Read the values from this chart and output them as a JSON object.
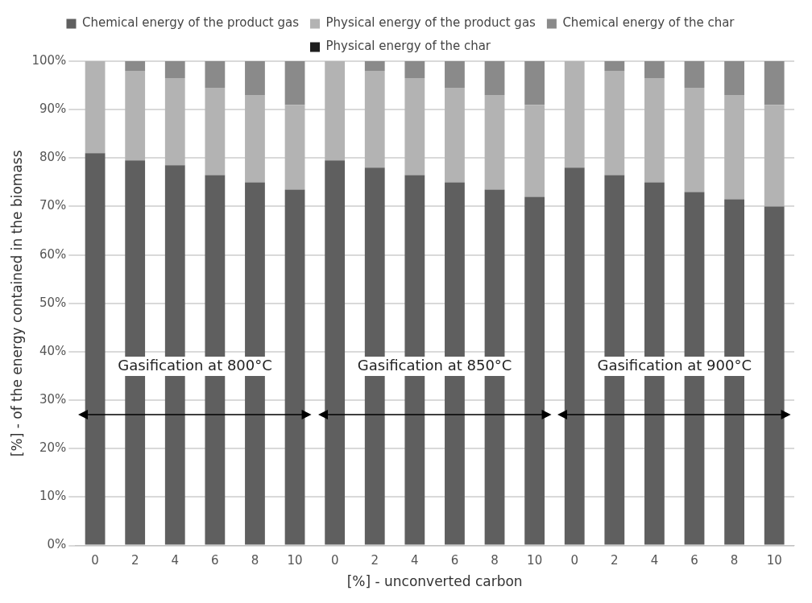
{
  "chart_data": {
    "type": "bar",
    "stacked": true,
    "xlabel": "[%] - unconverted carbon",
    "ylabel": "[%] - of the energy contained in the biomass",
    "categories": [
      "0",
      "2",
      "4",
      "6",
      "8",
      "10",
      "0",
      "2",
      "4",
      "6",
      "8",
      "10",
      "0",
      "2",
      "4",
      "6",
      "8",
      "10"
    ],
    "series": [
      {
        "name": "Chemical energy of the product gas",
        "color": "#5f5f5f",
        "values": [
          81,
          79.5,
          78.5,
          76.5,
          75,
          73.5,
          79.5,
          78,
          76.5,
          75,
          73.5,
          72,
          78,
          76.5,
          75,
          73,
          71.5,
          70
        ]
      },
      {
        "name": "Physical energy of the product gas",
        "color": "#b3b3b3",
        "values": [
          19,
          18.5,
          18,
          18,
          18,
          17.5,
          20.5,
          20,
          20,
          19.5,
          19.5,
          19,
          22,
          21.5,
          21.5,
          21.5,
          21.5,
          21
        ]
      },
      {
        "name": "Chemical energy of the char",
        "color": "#8a8a8a",
        "values": [
          0,
          2,
          3.5,
          5.5,
          7,
          9,
          0,
          2,
          3.5,
          5.5,
          7,
          9,
          0,
          2,
          3.5,
          5.5,
          7,
          9
        ]
      },
      {
        "name": "Physical energy of the char",
        "color": "#1e1e1e",
        "values": [
          0,
          0,
          0,
          0,
          0,
          0,
          0,
          0,
          0,
          0,
          0,
          0,
          0,
          0,
          0,
          0,
          0,
          0
        ]
      }
    ],
    "ylim": [
      0,
      100
    ],
    "yticks": [
      {
        "value": 0,
        "label": "0%"
      },
      {
        "value": 10,
        "label": "10%"
      },
      {
        "value": 20,
        "label": "20%"
      },
      {
        "value": 30,
        "label": "30%"
      },
      {
        "value": 40,
        "label": "40%"
      },
      {
        "value": 50,
        "label": "50%"
      },
      {
        "value": 60,
        "label": "60%"
      },
      {
        "value": 70,
        "label": "70%"
      },
      {
        "value": 80,
        "label": "80%"
      },
      {
        "value": 90,
        "label": "90%"
      },
      {
        "value": 100,
        "label": "100%"
      }
    ],
    "grid": "y",
    "legend": "top",
    "annotations": [
      "Gasification at 800°C",
      "Gasification at 850°C",
      "Gasification at 900°C"
    ]
  }
}
